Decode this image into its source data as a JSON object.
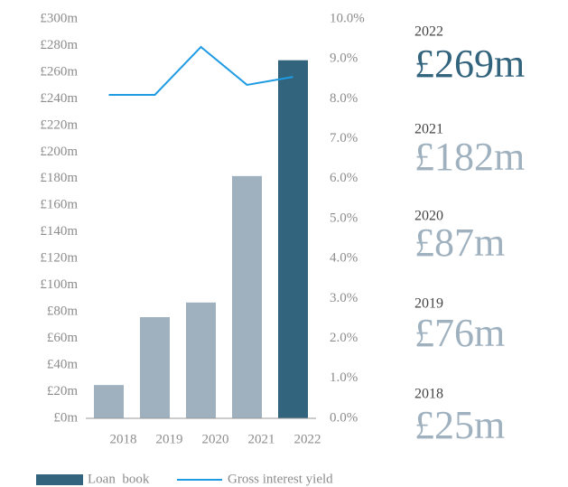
{
  "chart_data": {
    "type": "bar",
    "categories": [
      "2018",
      "2019",
      "2020",
      "2021",
      "2022"
    ],
    "series": [
      {
        "name": "Loan  book",
        "color": "#33647e",
        "colors": [
          "#9fb1bf",
          "#9fb1bf",
          "#9fb1bf",
          "#9fb1bf",
          "#33647e"
        ],
        "values": [
          25,
          76,
          87,
          182,
          269
        ],
        "value_labels": [
          "£25m",
          "£76m",
          "£87m",
          "£182m",
          "£269m"
        ]
      },
      {
        "name": "Gross interest yield",
        "type": "line",
        "axis": "y2",
        "color": "#1e9be3",
        "values": [
          8.1,
          8.1,
          9.3,
          8.35,
          8.55
        ]
      }
    ],
    "ylim": [
      0,
      300
    ],
    "yticks": [
      {
        "value": 0,
        "label": "£0m"
      },
      {
        "value": 20,
        "label": "£20m"
      },
      {
        "value": 40,
        "label": "£40m"
      },
      {
        "value": 60,
        "label": "£60m"
      },
      {
        "value": 80,
        "label": "£80m"
      },
      {
        "value": 100,
        "label": "£100m"
      },
      {
        "value": 120,
        "label": "£120m"
      },
      {
        "value": 140,
        "label": "£140m"
      },
      {
        "value": 160,
        "label": "£160m"
      },
      {
        "value": 180,
        "label": "£180m"
      },
      {
        "value": 200,
        "label": "£200m"
      },
      {
        "value": 220,
        "label": "£220m"
      },
      {
        "value": 240,
        "label": "£240m"
      },
      {
        "value": 260,
        "label": "£260m"
      },
      {
        "value": 280,
        "label": "£280m"
      },
      {
        "value": 300,
        "label": "£300m"
      }
    ],
    "y2lim": [
      0,
      10
    ],
    "y2ticks": [
      {
        "value": 0,
        "label": "0.0%"
      },
      {
        "value": 1,
        "label": "1.0%"
      },
      {
        "value": 2,
        "label": "2.0%"
      },
      {
        "value": 3,
        "label": "3.0%"
      },
      {
        "value": 4,
        "label": "4.0%"
      },
      {
        "value": 5,
        "label": "5.0%"
      },
      {
        "value": 6,
        "label": "6.0%"
      },
      {
        "value": 7,
        "label": "7.0%"
      },
      {
        "value": 8,
        "label": "8.0%"
      },
      {
        "value": 9,
        "label": "9.0%"
      },
      {
        "value": 10,
        "label": "10.0%"
      }
    ],
    "legend": "bottom"
  }
}
